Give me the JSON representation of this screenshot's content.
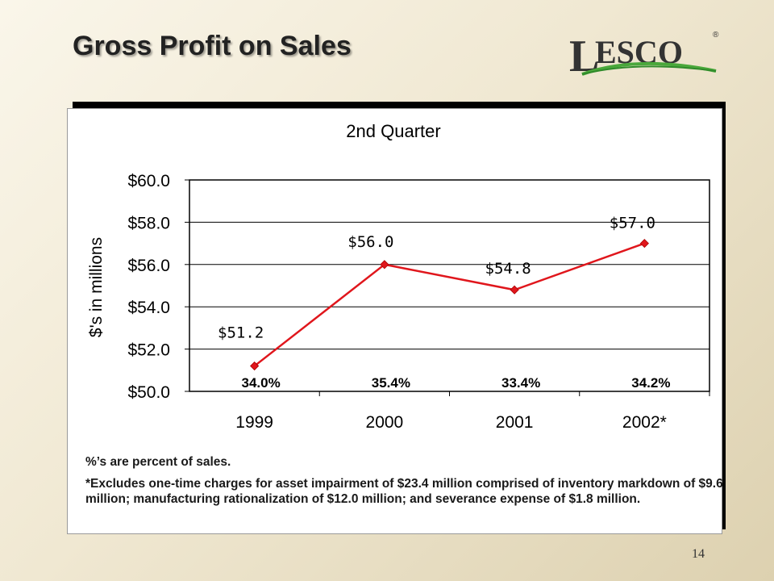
{
  "slide": {
    "title": "Gross Profit on Sales",
    "page_number": "14",
    "logo_text": "LESCO",
    "logo_mark": "®"
  },
  "notes": {
    "percent_note": "%’s are percent of sales.",
    "excludes_note": "*Excludes one-time charges for asset impairment of $23.4 million comprised of inventory markdown of $9.6 million; manufacturing rationalization of $12.0 million; and severance expense of $1.8 million."
  },
  "chart_data": {
    "type": "line",
    "title": "2nd Quarter",
    "xlabel": "",
    "ylabel": "$'s in millions",
    "categories": [
      "1999",
      "2000",
      "2001",
      "2002*"
    ],
    "values": [
      51.2,
      56.0,
      54.8,
      57.0
    ],
    "value_labels": [
      "$51.2",
      "$56.0",
      "$54.8",
      "$57.0"
    ],
    "percent_labels": [
      "34.0%",
      "35.4%",
      "33.4%",
      "34.2%"
    ],
    "ylim": [
      50.0,
      60.0
    ],
    "yticks": [
      50.0,
      52.0,
      54.0,
      56.0,
      58.0,
      60.0
    ],
    "ytick_labels": [
      "$50.0",
      "$52.0",
      "$54.0",
      "$56.0",
      "$58.0",
      "$60.0"
    ],
    "grid": true,
    "legend": "none",
    "colors": {
      "line": "#e0161c",
      "marker": "#e0161c",
      "grid": "#000000"
    }
  }
}
